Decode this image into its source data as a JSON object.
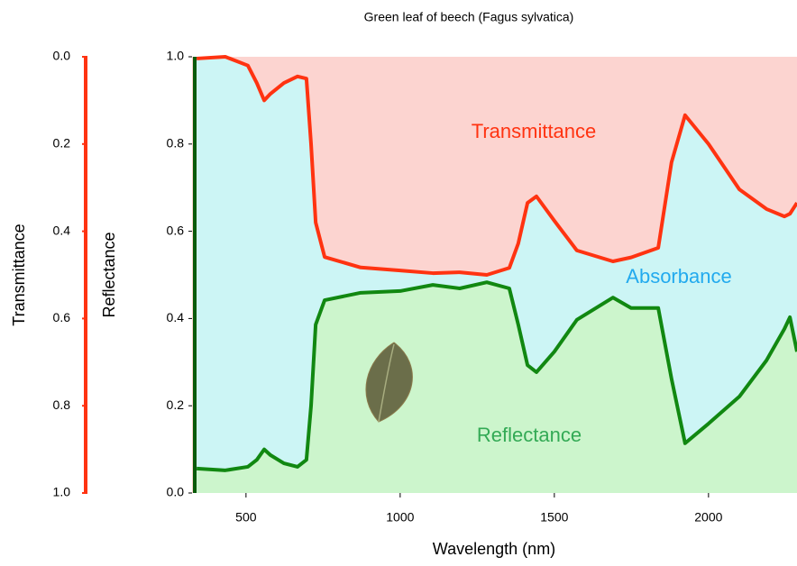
{
  "chart_data": {
    "type": "line",
    "title": "Green leaf of beech (Fagus sylvatica)",
    "xlabel": "Wavelength (nm)",
    "ylabel": "Reflectance",
    "y2label": "Transmittance",
    "annotations": [
      "Transmittance",
      "Absorbance",
      "Reflectance"
    ],
    "x": [
      340,
      433,
      506,
      535,
      559,
      579,
      623,
      667,
      696,
      711,
      726,
      755,
      872,
      1000,
      1106,
      1193,
      1281,
      1354,
      1383,
      1413,
      1442,
      1500,
      1573,
      1690,
      1749,
      1837,
      1880,
      1924,
      2000,
      2100,
      2188,
      2246,
      2264,
      2287
    ],
    "series": [
      {
        "name": "Reflectance",
        "color": "#118811",
        "fill": "#ccf5cc",
        "values": [
          0.056,
          0.052,
          0.06,
          0.076,
          0.1,
          0.087,
          0.068,
          0.06,
          0.076,
          0.2,
          0.386,
          0.442,
          0.459,
          0.463,
          0.477,
          0.469,
          0.483,
          0.469,
          0.386,
          0.293,
          0.277,
          0.324,
          0.397,
          0.448,
          0.424,
          0.424,
          0.262,
          0.114,
          0.159,
          0.221,
          0.304,
          0.376,
          0.403,
          0.324
        ]
      },
      {
        "name": "Transmittance",
        "color": "#ff3311",
        "fill": "#ccf5f5",
        "axis": "y2",
        "values": [
          0.004,
          0.0,
          0.02,
          0.06,
          0.1,
          0.085,
          0.06,
          0.045,
          0.05,
          0.2,
          0.38,
          0.459,
          0.483,
          0.49,
          0.496,
          0.494,
          0.5,
          0.484,
          0.428,
          0.335,
          0.32,
          0.376,
          0.444,
          0.469,
          0.46,
          0.438,
          0.242,
          0.134,
          0.2,
          0.304,
          0.349,
          0.366,
          0.36,
          0.335
        ]
      }
    ],
    "background": "#fcd4d0",
    "xlim": [
      325,
      2287
    ],
    "xticks": [
      500,
      1000,
      1500,
      2000
    ],
    "ylim": [
      0,
      1
    ],
    "yticks": [
      {
        "value": 0,
        "label": "0.0"
      },
      0.2,
      0.4,
      0.6,
      0.8,
      {
        "value": 1,
        "label": "1.0"
      }
    ],
    "y2lim": [
      1,
      0
    ],
    "y2ticks": [
      {
        "value": 0,
        "label": "0.0"
      },
      0.2,
      0.4,
      0.6,
      0.8,
      {
        "value": 1,
        "label": "1.0"
      }
    ],
    "y2color": "#ff3311"
  }
}
